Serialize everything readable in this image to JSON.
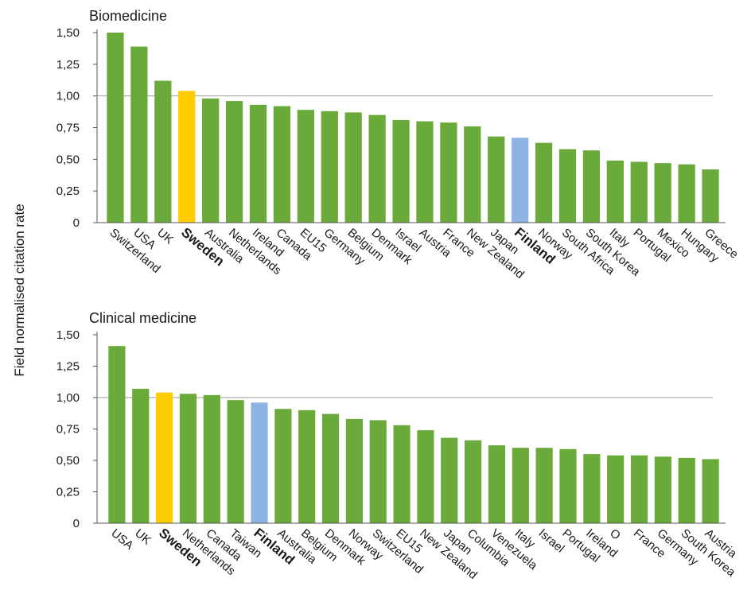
{
  "chart_data": [
    {
      "type": "bar",
      "title": "Biomedicine",
      "ylabel": "Field normalised citation rate",
      "categories": [
        "Switzerland",
        "USA",
        "UK",
        "Sweden",
        "Australia",
        "Netherlands",
        "Ireland",
        "Canada",
        "EU15",
        "Germany",
        "Belgium",
        "Denmark",
        "Israel",
        "Austria",
        "France",
        "New Zealand",
        "Japan",
        "Finland",
        "Norway",
        "South Africa",
        "South Korea",
        "Italy",
        "Portugal",
        "Mexico",
        "Hungary",
        "Greece"
      ],
      "values": [
        1.5,
        1.39,
        1.12,
        1.04,
        0.98,
        0.96,
        0.93,
        0.92,
        0.89,
        0.88,
        0.87,
        0.85,
        0.81,
        0.8,
        0.79,
        0.76,
        0.68,
        0.67,
        0.63,
        0.58,
        0.57,
        0.49,
        0.48,
        0.47,
        0.46,
        0.42
      ],
      "color": "#6aaa3a",
      "colors": [
        "#6aaa3a",
        "#6aaa3a",
        "#6aaa3a",
        "#ffcc00",
        "#6aaa3a",
        "#6aaa3a",
        "#6aaa3a",
        "#6aaa3a",
        "#6aaa3a",
        "#6aaa3a",
        "#6aaa3a",
        "#6aaa3a",
        "#6aaa3a",
        "#6aaa3a",
        "#6aaa3a",
        "#6aaa3a",
        "#6aaa3a",
        "#8db4e2",
        "#6aaa3a",
        "#6aaa3a",
        "#6aaa3a",
        "#6aaa3a",
        "#6aaa3a",
        "#6aaa3a",
        "#6aaa3a",
        "#6aaa3a"
      ],
      "ylim": [
        0,
        1.5
      ],
      "yticks": [
        0,
        {
          "value": 0.25,
          "label": "0,25"
        },
        {
          "value": 0.5,
          "label": "0,50"
        },
        {
          "value": 0.75,
          "label": "0,75"
        },
        {
          "value": 1,
          "label": "1,00"
        },
        {
          "value": 1.25,
          "label": "1,25"
        },
        {
          "value": 1.5,
          "label": "1,50"
        }
      ],
      "grid_at": [
        1
      ]
    },
    {
      "type": "bar",
      "title": "Clinical medicine",
      "categories": [
        "USA",
        "UK",
        "Sweden",
        "Netherlands",
        "Canada",
        "Taiwan",
        "Finland",
        "Australia",
        "Belgium",
        "Denmark",
        "Norway",
        "Switzerland",
        "EU15",
        "New Zealand",
        "Japan",
        "Columbia",
        "Venezuela",
        "Italy",
        "Israel",
        "Portugal",
        "Ireland",
        "O",
        "France",
        "Germany",
        "South Korea",
        "Austria"
      ],
      "values": [
        1.41,
        1.07,
        1.04,
        1.03,
        1.02,
        0.98,
        0.96,
        0.91,
        0.9,
        0.87,
        0.83,
        0.82,
        0.78,
        0.74,
        0.68,
        0.66,
        0.62,
        0.6,
        0.6,
        0.59,
        0.55,
        0.54,
        0.54,
        0.53,
        0.52,
        0.51
      ],
      "color": "#6aaa3a",
      "colors": [
        "#6aaa3a",
        "#6aaa3a",
        "#ffcc00",
        "#6aaa3a",
        "#6aaa3a",
        "#6aaa3a",
        "#8db4e2",
        "#6aaa3a",
        "#6aaa3a",
        "#6aaa3a",
        "#6aaa3a",
        "#6aaa3a",
        "#6aaa3a",
        "#6aaa3a",
        "#6aaa3a",
        "#6aaa3a",
        "#6aaa3a",
        "#6aaa3a",
        "#6aaa3a",
        "#6aaa3a",
        "#6aaa3a",
        "#6aaa3a",
        "#6aaa3a",
        "#6aaa3a",
        "#6aaa3a",
        "#6aaa3a"
      ],
      "ylim": [
        0,
        1.5
      ],
      "yticks": [
        0,
        {
          "value": 0.25,
          "label": "0,25"
        },
        {
          "value": 0.5,
          "label": "0,50"
        },
        {
          "value": 0.75,
          "label": "0,75"
        },
        {
          "value": 1,
          "label": "1,00"
        },
        {
          "value": 1.25,
          "label": "1,25"
        },
        {
          "value": 1.5,
          "label": "1,50"
        }
      ],
      "grid_at": [
        1
      ]
    }
  ]
}
